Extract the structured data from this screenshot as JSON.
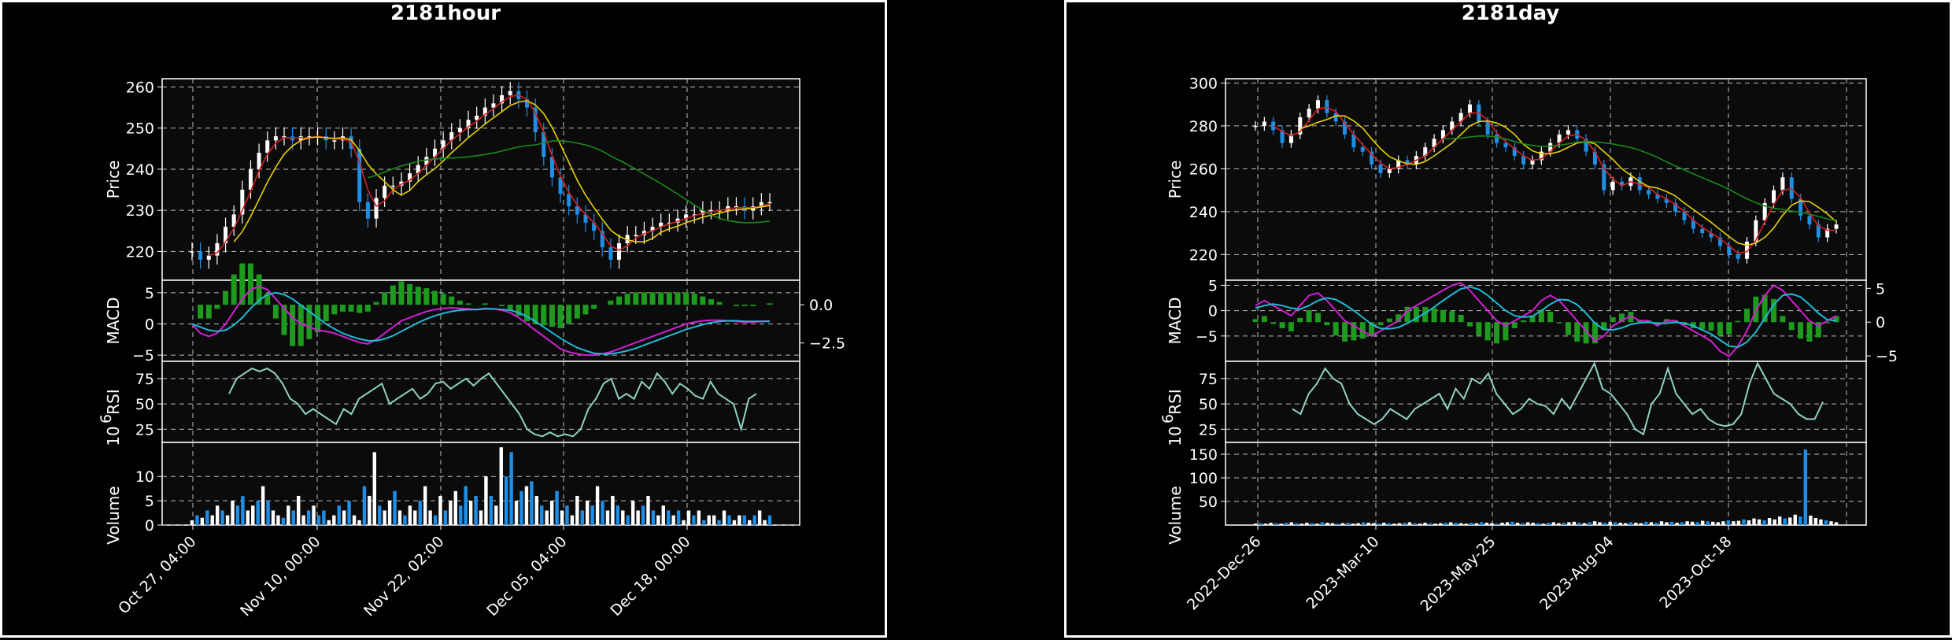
{
  "charts": [
    {
      "id": "hour",
      "title": "2181hour",
      "type": "candlestick",
      "x_ticks": [
        "Oct 27, 04:00",
        "Nov 10, 00:00",
        "Nov 22, 02:00",
        "Dec 05, 04:00",
        "Dec 18, 00:00"
      ],
      "price": {
        "ylabel": "Price",
        "ylim": [
          213,
          262
        ],
        "yticks": [
          220,
          230,
          240,
          250,
          260
        ],
        "ylabels": [
          "220",
          "230",
          "240",
          "250",
          "260"
        ],
        "close": [
          220,
          218,
          219,
          222,
          226,
          229,
          235,
          240,
          244,
          247,
          248,
          248,
          247,
          248,
          248,
          248,
          247,
          247,
          248,
          245,
          232,
          228,
          233,
          236,
          236,
          237,
          239,
          241,
          243,
          245,
          247,
          249,
          250,
          252,
          253,
          255,
          256,
          258,
          259,
          257,
          255,
          249,
          243,
          238,
          234,
          231,
          229,
          227,
          225,
          221,
          218,
          222,
          224,
          224,
          225,
          226,
          227,
          227,
          228,
          229,
          229,
          230,
          230,
          230,
          231,
          231,
          230,
          231,
          232,
          232
        ]
      },
      "macd": {
        "ylabel": "MACD",
        "ylim": [
          -6,
          7
        ],
        "yticks": [
          -5,
          0,
          5
        ],
        "ylabels": [
          "−5",
          "0",
          "5"
        ],
        "right_ylim": [
          -3.7,
          1.6
        ],
        "right_yticks": [
          -2.5,
          0.0
        ],
        "right_ylabels": [
          "−2.5",
          "0.0"
        ],
        "macd": [
          0,
          -1.5,
          -2,
          -1.5,
          0,
          2,
          4,
          5.5,
          6,
          5.5,
          4,
          2.5,
          1,
          0,
          -0.5,
          -1,
          -1.2,
          -1.5,
          -2,
          -2.5,
          -3,
          -3.2,
          -2.5,
          -1.5,
          -0.5,
          0.5,
          1,
          1.5,
          2,
          2.3,
          2.5,
          2.6,
          2.5,
          2.4,
          2.3,
          2.5,
          2.4,
          2.2,
          1.8,
          1,
          0,
          -1,
          -2,
          -3,
          -4,
          -4.5,
          -4.8,
          -5,
          -5,
          -4.8,
          -4.5,
          -4,
          -3.5,
          -3,
          -2.5,
          -2,
          -1.5,
          -1,
          -0.5,
          0,
          0.3,
          0.5,
          0.6,
          0.6,
          0.5,
          0.4,
          0.3,
          0.3,
          0.4,
          0.5
        ],
        "signal": [
          0,
          -0.5,
          -1,
          -1.2,
          -1,
          -0.2,
          1,
          2.5,
          3.8,
          4.7,
          5,
          4.7,
          4,
          3,
          2,
          1,
          0,
          -0.8,
          -1.5,
          -2,
          -2.4,
          -2.7,
          -2.7,
          -2.4,
          -1.9,
          -1.2,
          -0.5,
          0.2,
          0.8,
          1.3,
          1.7,
          2,
          2.2,
          2.3,
          2.3,
          2.4,
          2.4,
          2.3,
          2.2,
          1.8,
          1.2,
          0.4,
          -0.5,
          -1.4,
          -2.3,
          -3.1,
          -3.8,
          -4.3,
          -4.7,
          -4.8,
          -4.8,
          -4.6,
          -4.3,
          -3.9,
          -3.4,
          -2.9,
          -2.4,
          -1.9,
          -1.4,
          -0.9,
          -0.5,
          -0.1,
          0.2,
          0.4,
          0.5,
          0.5,
          0.4,
          0.4,
          0.4,
          0.4
        ]
      },
      "rsi": {
        "ylabel": "RSI",
        "ylim": [
          12,
          92
        ],
        "yticks": [
          25,
          50,
          75
        ],
        "ylabels": [
          "25",
          "50",
          "75"
        ],
        "values": [
          60,
          75,
          80,
          85,
          82,
          85,
          80,
          70,
          55,
          50,
          40,
          45,
          40,
          35,
          30,
          45,
          40,
          55,
          60,
          65,
          70,
          50,
          55,
          60,
          65,
          55,
          60,
          70,
          72,
          65,
          70,
          75,
          68,
          75,
          80,
          70,
          60,
          50,
          40,
          25,
          20,
          18,
          22,
          18,
          20,
          18,
          25,
          45,
          55,
          70,
          75,
          55,
          60,
          55,
          72,
          65,
          80,
          72,
          60,
          70,
          65,
          58,
          55,
          72,
          60,
          55,
          50,
          25,
          55,
          60
        ]
      },
      "volume": {
        "ylabel": "Volume",
        "exponent_label": "10",
        "exponent_power": "6",
        "ylim": [
          0,
          17
        ],
        "yticks": [
          0,
          5,
          10
        ],
        "ylabels": [
          "0",
          "5",
          "10"
        ],
        "values": [
          1,
          2,
          1.5,
          3,
          2,
          4,
          3,
          2,
          5,
          4,
          6,
          3,
          4,
          5,
          8,
          5,
          3,
          2,
          1.5,
          4,
          3,
          6,
          2,
          3,
          4,
          2,
          3,
          1,
          2,
          4,
          3,
          5,
          2,
          1,
          8,
          6,
          15,
          4,
          3,
          5,
          7,
          3,
          2,
          4,
          3,
          5,
          8,
          3,
          2,
          6,
          3,
          5,
          7,
          4,
          8,
          5,
          6,
          3,
          10,
          6,
          4,
          16,
          10,
          15,
          5,
          7,
          8,
          9,
          6,
          4,
          3,
          5,
          7,
          3,
          4,
          2,
          6,
          3,
          5,
          4,
          8,
          5,
          3,
          6,
          4,
          3,
          2,
          5,
          3,
          4,
          6,
          3,
          2,
          4,
          3,
          2,
          3,
          1,
          3,
          2,
          3,
          1,
          2,
          2,
          1,
          3,
          2,
          1,
          2,
          2,
          1,
          2,
          3,
          1,
          2
        ],
        "up": [
          1,
          0,
          1,
          0,
          1,
          1,
          0,
          1,
          1,
          0,
          0,
          1,
          1,
          0,
          1,
          0,
          1,
          1,
          0,
          1,
          0,
          1,
          1,
          0,
          1,
          0,
          0,
          1,
          1,
          0,
          1,
          0,
          1,
          1,
          0,
          1,
          1,
          0,
          1,
          1,
          0,
          1,
          0,
          1,
          1,
          0,
          1,
          1,
          0,
          1,
          0,
          1,
          1,
          0,
          0,
          1,
          0,
          1,
          1,
          0,
          1,
          1,
          0,
          0,
          1,
          0,
          1,
          0,
          1,
          0,
          1,
          1,
          0,
          1,
          0,
          1,
          1,
          0,
          1,
          0,
          1,
          0,
          1,
          1,
          0,
          1,
          0,
          1,
          1,
          0,
          1,
          0,
          1,
          1,
          0,
          1,
          0,
          1,
          1,
          0,
          1,
          0,
          1,
          1,
          0,
          1,
          0,
          1,
          1,
          0,
          1,
          0,
          1,
          1,
          0
        ]
      }
    },
    {
      "id": "day",
      "title": "2181day",
      "type": "candlestick",
      "x_ticks": [
        "2022-Dec-26",
        "2023-Mar-10",
        "2023-May-25",
        "2023-Aug-04",
        "2023-Oct-18"
      ],
      "price": {
        "ylabel": "Price",
        "ylim": [
          208,
          302
        ],
        "yticks": [
          220,
          240,
          260,
          280,
          300
        ],
        "ylabels": [
          "220",
          "240",
          "260",
          "280",
          "300"
        ],
        "close": [
          280,
          282,
          278,
          272,
          276,
          284,
          288,
          292,
          286,
          282,
          276,
          270,
          268,
          262,
          258,
          260,
          264,
          262,
          266,
          270,
          274,
          278,
          282,
          286,
          290,
          282,
          276,
          272,
          270,
          266,
          262,
          264,
          268,
          272,
          276,
          278,
          274,
          268,
          262,
          250,
          254,
          252,
          256,
          250,
          248,
          246,
          244,
          240,
          236,
          232,
          230,
          228,
          224,
          220,
          218,
          226,
          236,
          244,
          250,
          256,
          246,
          238,
          234,
          228,
          232,
          234
        ]
      },
      "macd": {
        "ylabel": "MACD",
        "ylim": [
          -10,
          6
        ],
        "yticks": [
          -5,
          0,
          5
        ],
        "ylabels": [
          "−5",
          "0",
          "5"
        ],
        "right_ylim": [
          -5.8,
          6.2
        ],
        "right_yticks": [
          -5,
          0,
          5
        ],
        "right_ylabels": [
          "−5",
          "0",
          "5"
        ],
        "macd": [
          1,
          2,
          1,
          0,
          -1,
          1,
          3,
          3.5,
          2,
          0,
          -2,
          -3,
          -4,
          -5,
          -4,
          -3,
          -2,
          0,
          1,
          2,
          3,
          4,
          5,
          5.5,
          4,
          2,
          0,
          -2,
          -3,
          -2,
          -1,
          0,
          2,
          3,
          2,
          0,
          -2,
          -4,
          -6,
          -5,
          -3,
          -2,
          -1,
          -2,
          -2,
          -3,
          -2,
          -2,
          -3,
          -4,
          -5,
          -6,
          -8,
          -9,
          -7,
          -4,
          0,
          3,
          5,
          4,
          2,
          0,
          -2,
          -3,
          -2,
          -1
        ],
        "signal": [
          0.5,
          1,
          1.3,
          1,
          0.5,
          0.3,
          1,
          2,
          2.5,
          2.2,
          1.2,
          0,
          -1.3,
          -2.7,
          -3.5,
          -3.6,
          -3.3,
          -2.5,
          -1.5,
          -0.5,
          0.7,
          2,
          3.2,
          4.3,
          4.7,
          4.2,
          3,
          1.5,
          0,
          -1,
          -1.3,
          -1.1,
          0,
          1.3,
          2.2,
          2.1,
          1.2,
          -0.5,
          -2.5,
          -3.7,
          -3.8,
          -3.4,
          -2.7,
          -2.4,
          -2.3,
          -2.5,
          -2.5,
          -2.3,
          -2.5,
          -3,
          -3.8,
          -4.6,
          -5.8,
          -7,
          -7.2,
          -6.2,
          -4.2,
          -1.5,
          1.2,
          3,
          3.3,
          2.7,
          1.2,
          -0.5,
          -1.8,
          -2
        ]
      },
      "rsi": {
        "ylabel": "RSI",
        "ylim": [
          12,
          92
        ],
        "yticks": [
          25,
          50,
          75
        ],
        "ylabels": [
          "25",
          "50",
          "75"
        ],
        "values": [
          45,
          40,
          60,
          70,
          85,
          75,
          70,
          50,
          40,
          35,
          30,
          35,
          45,
          40,
          35,
          45,
          50,
          55,
          60,
          45,
          65,
          55,
          75,
          70,
          80,
          60,
          50,
          40,
          45,
          55,
          50,
          48,
          40,
          55,
          45,
          60,
          75,
          90,
          65,
          60,
          50,
          40,
          25,
          20,
          50,
          60,
          85,
          60,
          50,
          40,
          45,
          35,
          30,
          28,
          30,
          40,
          70,
          90,
          75,
          60,
          55,
          50,
          40,
          35,
          35,
          52
        ]
      },
      "volume": {
        "ylabel": "Volume",
        "exponent_label": "10",
        "exponent_power": "6",
        "ylim": [
          0,
          175
        ],
        "yticks": [
          50,
          100,
          150
        ],
        "ylabels": [
          "50",
          "100",
          "150"
        ],
        "values": [
          3,
          4,
          3,
          5,
          4,
          3,
          5,
          6,
          4,
          3,
          5,
          4,
          3,
          6,
          5,
          4,
          3,
          4,
          5,
          3,
          4,
          6,
          5,
          4,
          3,
          5,
          4,
          3,
          4,
          5,
          6,
          4,
          3,
          5,
          4,
          3,
          4,
          5,
          6,
          5,
          4,
          3,
          5,
          4,
          6,
          5,
          4,
          3,
          5,
          6,
          7,
          5,
          4,
          6,
          5,
          4,
          3,
          5,
          6,
          4,
          5,
          6,
          7,
          5,
          4,
          6,
          8,
          6,
          5,
          7,
          6,
          5,
          4,
          6,
          5,
          4,
          7,
          6,
          5,
          8,
          6,
          7,
          5,
          6,
          8,
          7,
          6,
          9,
          8,
          7,
          6,
          8,
          10,
          8,
          9,
          12,
          10,
          14,
          12,
          10,
          15,
          12,
          18,
          14,
          16,
          22,
          18,
          160,
          20,
          15,
          12,
          10,
          8,
          6
        ],
        "up": [
          1,
          0,
          1,
          1,
          0,
          1,
          0,
          1,
          0,
          1,
          1,
          0,
          1,
          0,
          1,
          1,
          0,
          1,
          0,
          1,
          1,
          0,
          1,
          1,
          0,
          1,
          0,
          1,
          1,
          0,
          1,
          0,
          1,
          1,
          0,
          1,
          1,
          0,
          1,
          0,
          1,
          1,
          0,
          1,
          0,
          1,
          1,
          0,
          1,
          1,
          0,
          1,
          0,
          1,
          1,
          0,
          1,
          0,
          1,
          1,
          0,
          1,
          1,
          0,
          1,
          0,
          1,
          1,
          0,
          1,
          0,
          1,
          1,
          0,
          1,
          1,
          0,
          1,
          0,
          1,
          1,
          0,
          1,
          0,
          1,
          1,
          0,
          1,
          0,
          1,
          1,
          1,
          0,
          1,
          1,
          0,
          1,
          1,
          1,
          0,
          1,
          1,
          1,
          0,
          1,
          1,
          0,
          0,
          1,
          1,
          1,
          0,
          1,
          1
        ]
      }
    }
  ]
}
